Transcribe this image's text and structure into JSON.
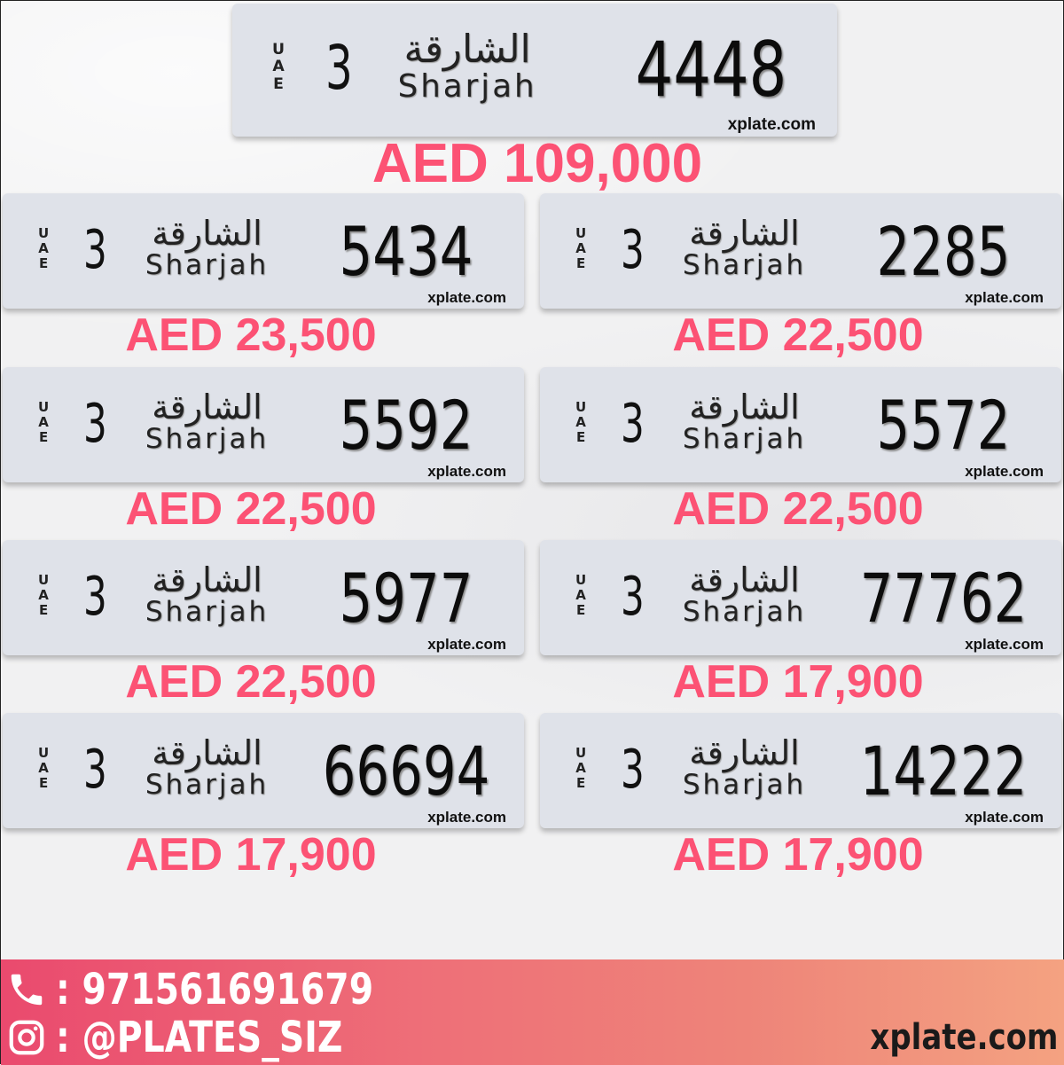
{
  "featured": {
    "uae": [
      "U",
      "A",
      "E"
    ],
    "code": "3",
    "emirate_ar": "الشارقة",
    "emirate_en": "Sharjah",
    "number": "4448",
    "watermark": "xplate.com",
    "price": "AED 109,000"
  },
  "plates": [
    {
      "uae": [
        "U",
        "A",
        "E"
      ],
      "code": "3",
      "emirate_ar": "الشارقة",
      "emirate_en": "Sharjah",
      "number": "5434",
      "watermark": "xplate.com",
      "price": "AED 23,500"
    },
    {
      "uae": [
        "U",
        "A",
        "E"
      ],
      "code": "3",
      "emirate_ar": "الشارقة",
      "emirate_en": "Sharjah",
      "number": "2285",
      "watermark": "xplate.com",
      "price": "AED 22,500"
    },
    {
      "uae": [
        "U",
        "A",
        "E"
      ],
      "code": "3",
      "emirate_ar": "الشارقة",
      "emirate_en": "Sharjah",
      "number": "5592",
      "watermark": "xplate.com",
      "price": "AED 22,500"
    },
    {
      "uae": [
        "U",
        "A",
        "E"
      ],
      "code": "3",
      "emirate_ar": "الشارقة",
      "emirate_en": "Sharjah",
      "number": "5572",
      "watermark": "xplate.com",
      "price": "AED 22,500"
    },
    {
      "uae": [
        "U",
        "A",
        "E"
      ],
      "code": "3",
      "emirate_ar": "الشارقة",
      "emirate_en": "Sharjah",
      "number": "5977",
      "watermark": "xplate.com",
      "price": "AED 22,500"
    },
    {
      "uae": [
        "U",
        "A",
        "E"
      ],
      "code": "3",
      "emirate_ar": "الشارقة",
      "emirate_en": "Sharjah",
      "number": "77762",
      "watermark": "xplate.com",
      "price": "AED 17,900"
    },
    {
      "uae": [
        "U",
        "A",
        "E"
      ],
      "code": "3",
      "emirate_ar": "الشارقة",
      "emirate_en": "Sharjah",
      "number": "66694",
      "watermark": "xplate.com",
      "price": "AED 17,900"
    },
    {
      "uae": [
        "U",
        "A",
        "E"
      ],
      "code": "3",
      "emirate_ar": "الشارقة",
      "emirate_en": "Sharjah",
      "number": "14222",
      "watermark": "xplate.com",
      "price": "AED 17,900"
    }
  ],
  "footer": {
    "phone": ": 971561691679",
    "instagram": ": @PLATES_SIZ",
    "site": "xplate.com",
    "phone_icon": "phone-icon",
    "instagram_icon": "instagram-icon"
  },
  "colors": {
    "price": "#fc5274",
    "plate": "#dfe2e9",
    "footer_start": "#ea4a6e",
    "footer_end": "#f4a281"
  }
}
